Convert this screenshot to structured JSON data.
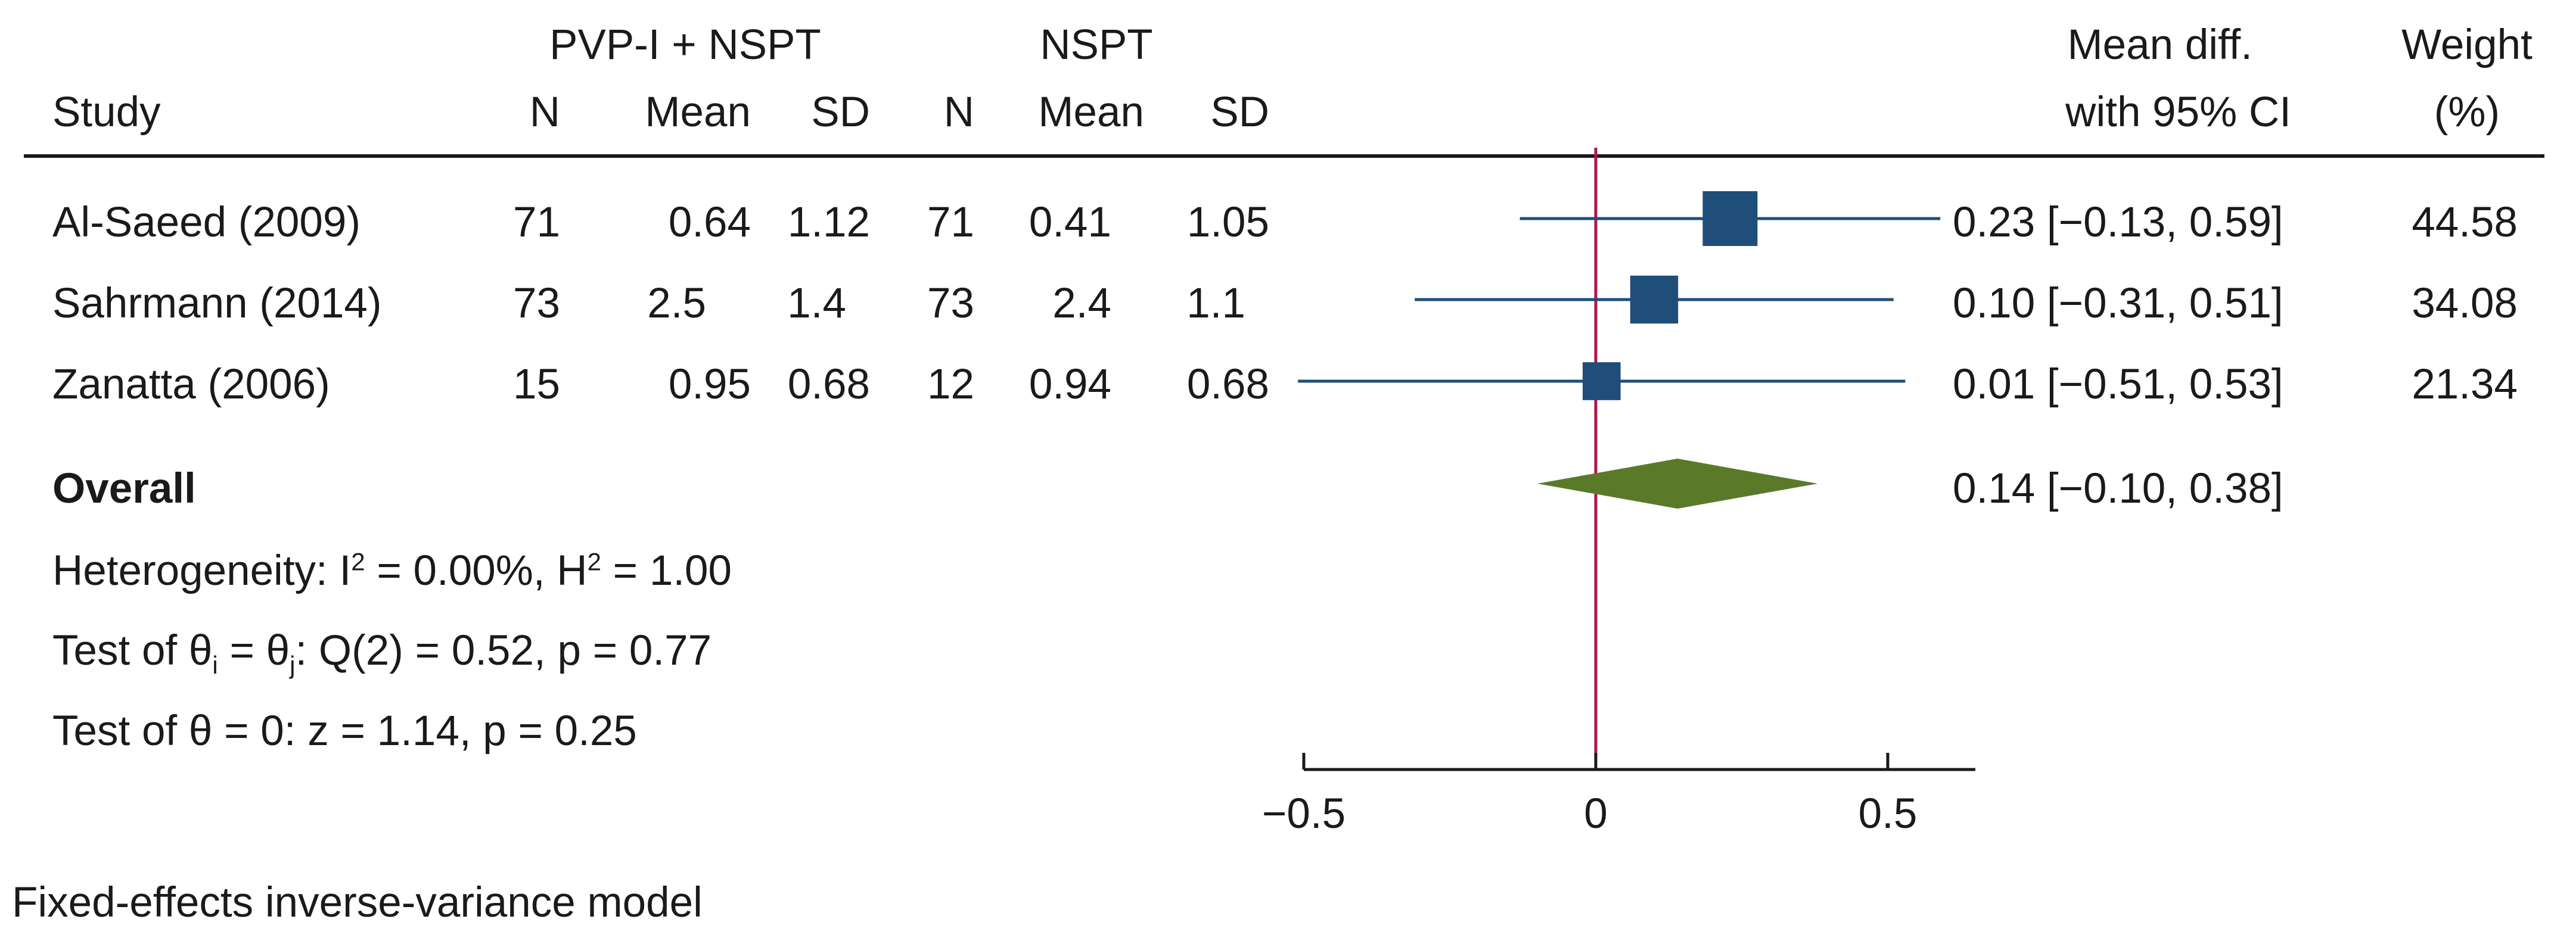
{
  "header": {
    "group1": "PVP-I + NSPT",
    "group2": "NSPT",
    "study": "Study",
    "n": "N",
    "mean": "Mean",
    "sd": "SD",
    "effect_line1": "Mean diff.",
    "effect_line2": "with 95% CI",
    "weight_line1": "Weight",
    "weight_line2": "(%)"
  },
  "studies": [
    {
      "name": "Al-Saeed (2009)",
      "n1": "71",
      "mean1": "0.64",
      "sd1": "1.12",
      "n2": "71",
      "mean2": "0.41",
      "sd2": "1.05",
      "ci_text": "0.23 [−0.13,  0.59]",
      "weight_text": "44.58"
    },
    {
      "name": "Sahrmann (2014)",
      "n1": "73",
      "mean1": "2.5",
      "sd1": "1.4",
      "n2": "73",
      "mean2": "2.4",
      "sd2": "1.1",
      "ci_text": "0.10 [−0.31,  0.51]",
      "weight_text": "34.08"
    },
    {
      "name": "Zanatta (2006)",
      "n1": "15",
      "mean1": "0.95",
      "sd1": "0.68",
      "n2": "12",
      "mean2": "0.94",
      "sd2": "0.68",
      "ci_text": "0.01 [−0.51,  0.53]",
      "weight_text": "21.34"
    }
  ],
  "overall": {
    "label": "Overall",
    "ci_text": "0.14 [−0.10,  0.38]"
  },
  "stats": {
    "het_prefix": "Heterogeneity: I",
    "het_sup1": "2",
    "het_mid": " = 0.00%, H",
    "het_sup2": "2",
    "het_suffix": " = 1.00",
    "q_prefix": "Test of θ",
    "q_sub1": "i",
    "q_mid": " = θ",
    "q_sub2": "j",
    "q_suffix": ": Q(2) = 0.52, p = 0.77",
    "z_test": "Test of θ = 0: z = 1.14, p = 0.25"
  },
  "footnote": "Fixed-effects inverse-variance model",
  "colors": {
    "marker": "#1f4e79",
    "line": "#1f4e79",
    "diamond": "#5a7a2a",
    "ref_line": "#b0144a",
    "text": "#1a1a1a"
  },
  "chart_data": {
    "type": "forest",
    "title": "",
    "xlabel": "",
    "xlim": [
      -0.5,
      0.65
    ],
    "ticks": [
      -0.5,
      0,
      0.5
    ],
    "tick_labels": [
      "−0.5",
      "0",
      "0.5"
    ],
    "reference_line": 0,
    "studies": [
      {
        "name": "Al-Saeed (2009)",
        "estimate": 0.23,
        "lower": -0.13,
        "upper": 0.59,
        "weight": 44.58
      },
      {
        "name": "Sahrmann (2014)",
        "estimate": 0.1,
        "lower": -0.31,
        "upper": 0.51,
        "weight": 34.08
      },
      {
        "name": "Zanatta (2006)",
        "estimate": 0.01,
        "lower": -0.51,
        "upper": 0.53,
        "weight": 21.34
      }
    ],
    "overall": {
      "estimate": 0.14,
      "lower": -0.1,
      "upper": 0.38
    }
  }
}
